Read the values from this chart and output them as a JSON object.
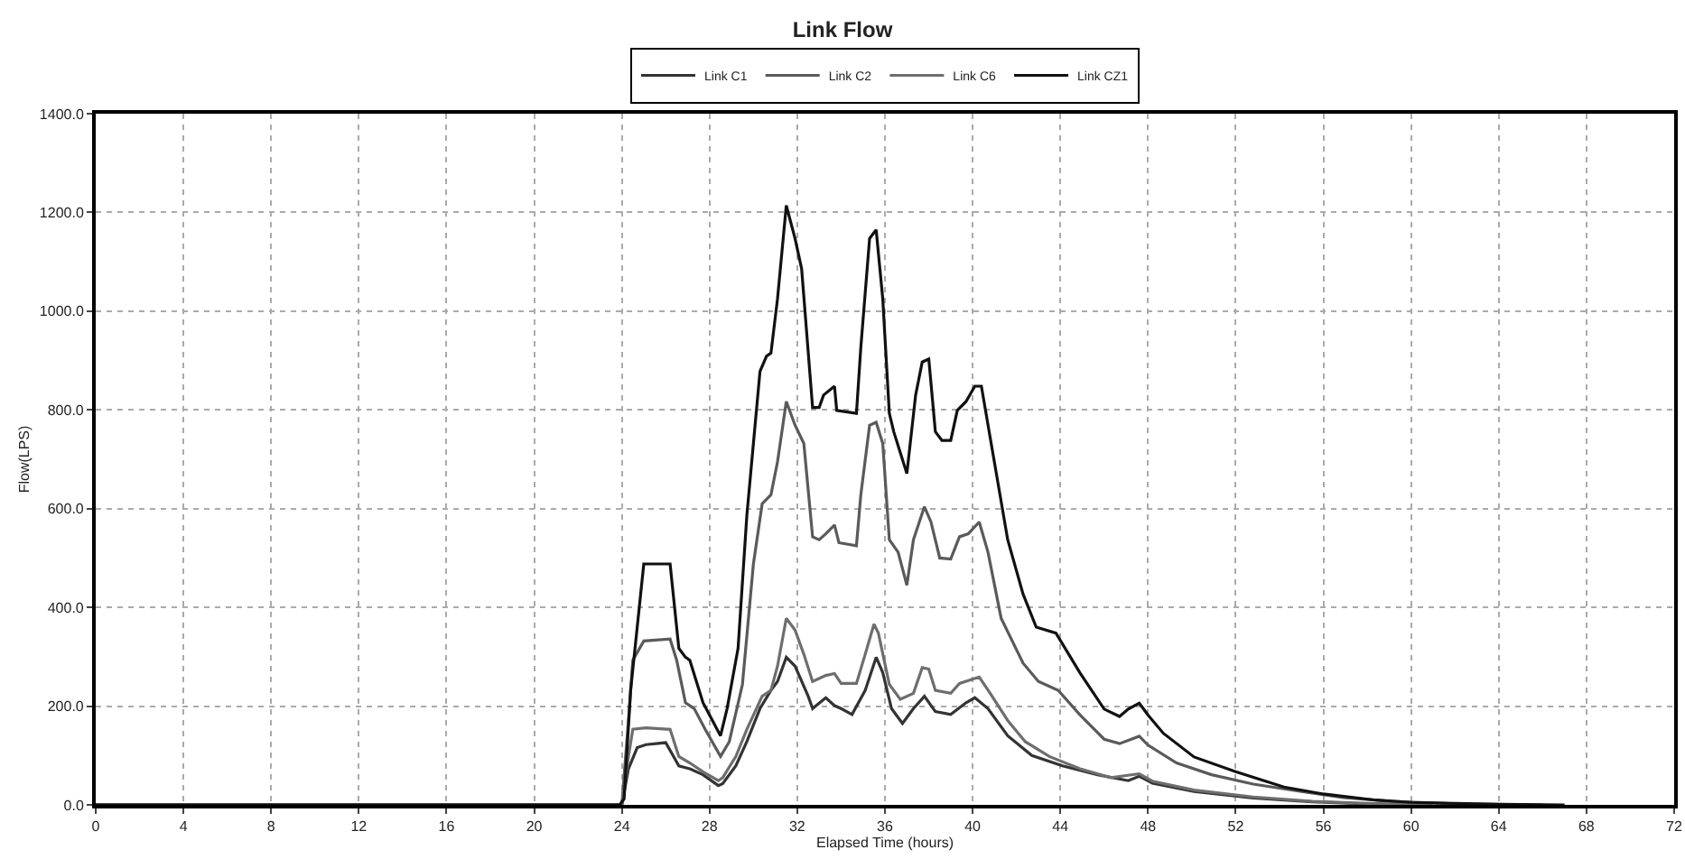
{
  "chart_data": {
    "type": "line",
    "title": "Link Flow",
    "xlabel": "Elapsed Time (hours)",
    "ylabel": "Flow(LPS)",
    "xlim": [
      0,
      72
    ],
    "xticks": [
      0,
      4,
      8,
      12,
      16,
      20,
      24,
      28,
      32,
      36,
      40,
      44,
      48,
      52,
      56,
      60,
      64,
      68,
      72
    ],
    "ylim": [
      0,
      1400
    ],
    "yticks": [
      {
        "value": 0,
        "label": "0.0"
      },
      {
        "value": 200,
        "label": "200.0"
      },
      {
        "value": 400,
        "label": "400.0"
      },
      {
        "value": 600,
        "label": "600.0"
      },
      {
        "value": 800,
        "label": "800.0"
      },
      {
        "value": 1000,
        "label": "1000.0"
      },
      {
        "value": 1200,
        "label": "1200.0"
      },
      {
        "value": 1400,
        "label": "1400.0"
      }
    ],
    "grid": true,
    "legend": "top",
    "marker": "none",
    "line_style": "solid",
    "series": [
      {
        "name": "Link C1",
        "color": "#333333",
        "x": [
          0,
          24.0,
          24.3,
          24.7,
          25.1,
          26.0,
          26.6,
          27.1,
          27.7,
          28.4,
          28.6,
          29.2,
          29.7,
          30.3,
          30.8,
          31.1,
          31.5,
          31.9,
          32.5,
          32.7,
          33.3,
          33.7,
          34.0,
          34.5,
          35.1,
          35.6,
          35.9,
          36.3,
          36.8,
          37.3,
          37.8,
          38.3,
          39.0,
          39.7,
          40.1,
          40.7,
          41.6,
          42.7,
          44.1,
          45.7,
          47.1,
          47.6,
          48.2,
          50.1,
          52.8,
          55.5,
          58,
          60
        ],
        "values": [
          0,
          0,
          73,
          116,
          122,
          126,
          79,
          73,
          61,
          39,
          43,
          79,
          128,
          195,
          232,
          250,
          299,
          281,
          220,
          195,
          217,
          201,
          195,
          183,
          232,
          299,
          268,
          195,
          165,
          195,
          220,
          189,
          183,
          207,
          217,
          195,
          140,
          100,
          79,
          61,
          49,
          58,
          44,
          27,
          14,
          6,
          2,
          0
        ]
      },
      {
        "name": "Link C2",
        "color": "#5a5a5a",
        "x": [
          0,
          24.0,
          24.3,
          24.5,
          25.0,
          26.2,
          26.5,
          26.9,
          27.3,
          27.8,
          28.5,
          28.9,
          29.5,
          30.0,
          30.4,
          30.8,
          31.1,
          31.5,
          31.9,
          32.3,
          32.7,
          33.0,
          33.3,
          33.7,
          33.9,
          34.7,
          34.9,
          35.3,
          35.6,
          35.9,
          36.2,
          36.6,
          37.0,
          37.3,
          37.8,
          38.1,
          38.5,
          39.0,
          39.4,
          39.8,
          40.3,
          40.7,
          41.3,
          42.3,
          43.0,
          43.9,
          44.9,
          46.0,
          46.7,
          47.6,
          48.0,
          49.3,
          50.9,
          52.8,
          55.0,
          56.9,
          59.1,
          62,
          66
        ],
        "values": [
          0,
          0,
          171,
          293,
          332,
          336,
          293,
          207,
          195,
          153,
          98,
          128,
          244,
          488,
          610,
          628,
          695,
          817,
          769,
          732,
          543,
          537,
          549,
          567,
          531,
          525,
          628,
          769,
          775,
          732,
          537,
          512,
          445,
          537,
          604,
          573,
          500,
          498,
          543,
          549,
          573,
          512,
          378,
          287,
          250,
          232,
          182,
          133,
          124,
          139,
          121,
          85,
          61,
          42,
          27,
          15,
          7,
          2,
          0
        ]
      },
      {
        "name": "Link C6",
        "color": "#6e6e6e",
        "x": [
          0,
          24.0,
          24.3,
          24.5,
          25.1,
          26.2,
          26.6,
          27.1,
          27.7,
          28.4,
          28.6,
          29.2,
          29.7,
          30.4,
          30.8,
          31.1,
          31.5,
          31.9,
          32.3,
          32.7,
          33.3,
          33.7,
          34.0,
          34.7,
          35.1,
          35.5,
          35.7,
          36.2,
          36.7,
          37.3,
          37.7,
          38.0,
          38.3,
          39.0,
          39.4,
          40.3,
          40.8,
          41.6,
          42.4,
          43.5,
          44.9,
          46.3,
          47.6,
          48.2,
          50.1,
          52.8,
          55.5,
          58,
          61
        ],
        "values": [
          0,
          0,
          98,
          153,
          156,
          153,
          98,
          85,
          67,
          49,
          55,
          98,
          153,
          220,
          232,
          281,
          378,
          354,
          305,
          250,
          262,
          266,
          246,
          246,
          305,
          366,
          348,
          244,
          214,
          226,
          278,
          275,
          232,
          226,
          246,
          259,
          226,
          171,
          128,
          98,
          73,
          55,
          63,
          48,
          30,
          16,
          7,
          3,
          0
        ]
      },
      {
        "name": "Link CZ1",
        "color": "#111111",
        "x": [
          0,
          23.9,
          24.1,
          24.4,
          25.0,
          26.2,
          26.6,
          26.9,
          27.1,
          27.7,
          28.5,
          28.8,
          29.3,
          29.7,
          30.3,
          30.6,
          30.8,
          31.1,
          31.5,
          31.9,
          32.2,
          32.7,
          33.0,
          33.2,
          33.7,
          33.8,
          34.7,
          34.9,
          35.3,
          35.6,
          35.9,
          36.2,
          36.4,
          37.0,
          37.4,
          37.7,
          38.0,
          38.3,
          38.6,
          39.0,
          39.3,
          39.7,
          40.1,
          40.4,
          40.8,
          41.6,
          42.3,
          42.9,
          43.8,
          44.9,
          46.0,
          46.7,
          47.1,
          47.6,
          48.0,
          48.7,
          50.1,
          52.0,
          54.2,
          56.0,
          58.3,
          60.0,
          64,
          67
        ],
        "values": [
          0,
          0,
          12,
          232,
          488,
          488,
          317,
          299,
          293,
          207,
          140,
          195,
          317,
          586,
          878,
          909,
          915,
          1025,
          1214,
          1147,
          1086,
          805,
          805,
          830,
          848,
          799,
          793,
          927,
          1147,
          1165,
          1025,
          793,
          756,
          671,
          830,
          897,
          903,
          756,
          738,
          738,
          799,
          817,
          848,
          848,
          744,
          537,
          427,
          360,
          348,
          267,
          194,
          179,
          194,
          206,
          182,
          145,
          97,
          67,
          36,
          22,
          10,
          5,
          1,
          0
        ]
      }
    ]
  }
}
